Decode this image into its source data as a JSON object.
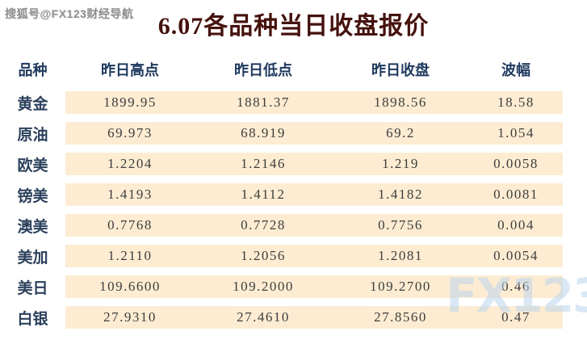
{
  "watermarks": {
    "top_left": "搜狐号@FX123财经导航",
    "bottom_right": "FX123"
  },
  "title": "6.07各品种当日收盘报价",
  "table": {
    "headers": [
      "品种",
      "昨日高点",
      "昨日低点",
      "昨日收盘",
      "波幅"
    ],
    "rows": [
      [
        "黄金",
        "1899.95",
        "1881.37",
        "1898.56",
        "18.58"
      ],
      [
        "原油",
        "69.973",
        "68.919",
        "69.2",
        "1.054"
      ],
      [
        "欧美",
        "1.2204",
        "1.2146",
        "1.219",
        "0.0058"
      ],
      [
        "镑美",
        "1.4193",
        "1.4112",
        "1.4182",
        "0.0081"
      ],
      [
        "澳美",
        "0.7768",
        "0.7728",
        "0.7756",
        "0.004"
      ],
      [
        "美加",
        "1.2110",
        "1.2056",
        "1.2081",
        "0.0054"
      ],
      [
        "美日",
        "109.6600",
        "109.2000",
        "109.2700",
        "0.46"
      ],
      [
        "白银",
        "27.9310",
        "27.4610",
        "27.8560",
        "0.47"
      ]
    ]
  },
  "colors": {
    "row_band": "#fdecd2",
    "header_text": "#1f3a5e",
    "label_text": "#2c415c",
    "number_text": "#3d3d3d",
    "title_text": "#45120e",
    "watermark_blue": "#bdd6ee"
  }
}
